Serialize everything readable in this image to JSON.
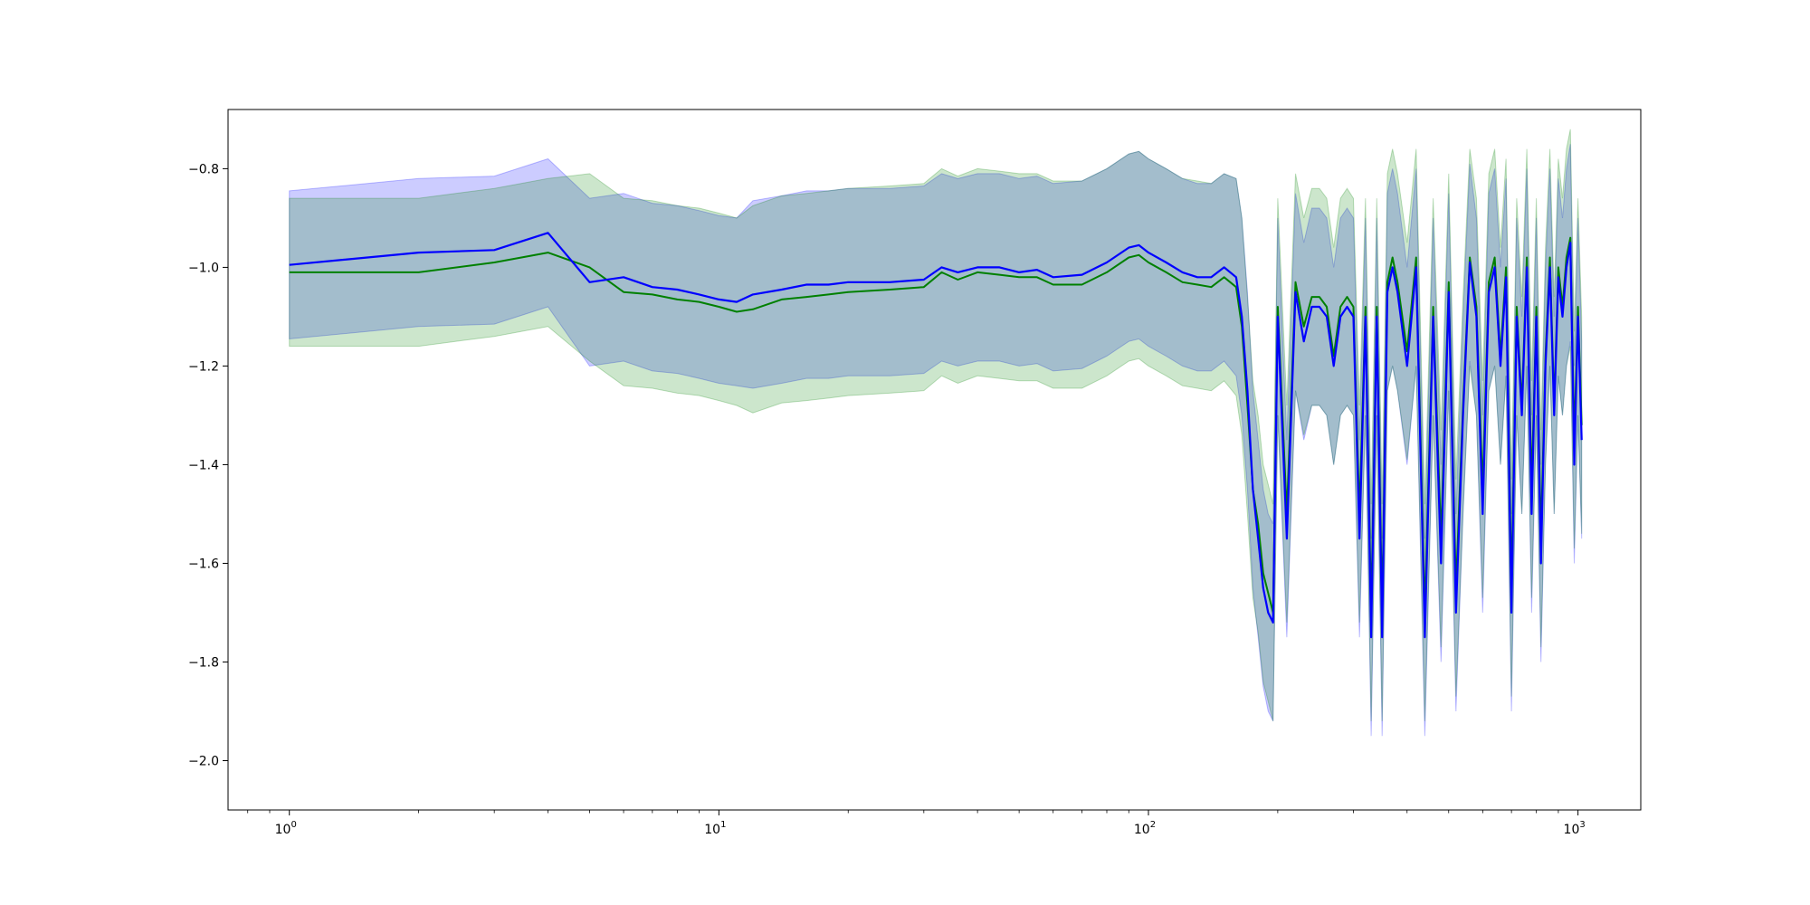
{
  "chart_data": {
    "type": "line",
    "title": "",
    "xlabel": "",
    "ylabel": "",
    "xscale": "log",
    "xlim": [
      0.72,
      1400
    ],
    "ylim": [
      -2.1,
      -0.68
    ],
    "grid": false,
    "legend": "none",
    "x_ticks": [
      {
        "base": "10",
        "exp": "0",
        "value": 1
      },
      {
        "base": "10",
        "exp": "1",
        "value": 10
      },
      {
        "base": "10",
        "exp": "2",
        "value": 100
      },
      {
        "base": "10",
        "exp": "3",
        "value": 1000
      }
    ],
    "y_ticks": [
      {
        "label": "−0.8",
        "value": -0.8
      },
      {
        "label": "−1.0",
        "value": -1.0
      },
      {
        "label": "−1.2",
        "value": -1.2
      },
      {
        "label": "−1.4",
        "value": -1.4
      },
      {
        "label": "−1.6",
        "value": -1.6
      },
      {
        "label": "−1.8",
        "value": -1.8
      },
      {
        "label": "−2.0",
        "value": -2.0
      }
    ],
    "series": [
      {
        "color": "#0000ff",
        "band_color": "#0000ff",
        "band_opacity": 0.2,
        "x": [
          1,
          2,
          3,
          4,
          5,
          6,
          7,
          8,
          9,
          10,
          11,
          12,
          14,
          16,
          18,
          20,
          25,
          30,
          33,
          36,
          40,
          45,
          50,
          55,
          60,
          70,
          80,
          90,
          95,
          100,
          110,
          120,
          130,
          140,
          150,
          160,
          165,
          170,
          175,
          180,
          185,
          190,
          195,
          200,
          210,
          220,
          230,
          240,
          250,
          260,
          270,
          280,
          290,
          300,
          310,
          320,
          330,
          340,
          350,
          360,
          370,
          380,
          400,
          420,
          440,
          460,
          480,
          500,
          520,
          540,
          560,
          580,
          600,
          620,
          640,
          660,
          680,
          700,
          720,
          740,
          760,
          780,
          800,
          820,
          840,
          860,
          880,
          900,
          920,
          940,
          960,
          980,
          1000,
          1020
        ],
        "y": [
          -0.995,
          -0.97,
          -0.965,
          -0.93,
          -1.03,
          -1.02,
          -1.04,
          -1.045,
          -1.055,
          -1.065,
          -1.07,
          -1.055,
          -1.045,
          -1.035,
          -1.035,
          -1.03,
          -1.03,
          -1.025,
          -1.0,
          -1.01,
          -1.0,
          -1.0,
          -1.01,
          -1.005,
          -1.02,
          -1.015,
          -0.99,
          -0.96,
          -0.955,
          -0.97,
          -0.99,
          -1.01,
          -1.02,
          -1.02,
          -1.0,
          -1.02,
          -1.1,
          -1.25,
          -1.45,
          -1.55,
          -1.65,
          -1.7,
          -1.72,
          -1.1,
          -1.55,
          -1.05,
          -1.15,
          -1.08,
          -1.08,
          -1.1,
          -1.2,
          -1.1,
          -1.08,
          -1.1,
          -1.55,
          -1.1,
          -1.75,
          -1.1,
          -1.75,
          -1.05,
          -1.0,
          -1.05,
          -1.2,
          -1.0,
          -1.75,
          -1.1,
          -1.6,
          -1.05,
          -1.7,
          -1.3,
          -0.99,
          -1.1,
          -1.5,
          -1.05,
          -1.0,
          -1.2,
          -1.02,
          -1.7,
          -1.1,
          -1.3,
          -1.0,
          -1.5,
          -1.1,
          -1.6,
          -1.2,
          -1.0,
          -1.3,
          -1.02,
          -1.1,
          -1.0,
          -0.95,
          -1.4,
          -1.1,
          -1.35
        ]
      },
      {
        "color": "#008000",
        "band_color": "#008000",
        "band_opacity": 0.2,
        "x": [
          1,
          2,
          3,
          4,
          5,
          6,
          7,
          8,
          9,
          10,
          11,
          12,
          14,
          16,
          18,
          20,
          25,
          30,
          33,
          36,
          40,
          45,
          50,
          55,
          60,
          70,
          80,
          90,
          95,
          100,
          110,
          120,
          130,
          140,
          150,
          160,
          165,
          170,
          175,
          180,
          185,
          190,
          195,
          200,
          210,
          220,
          230,
          240,
          250,
          260,
          270,
          280,
          290,
          300,
          310,
          320,
          330,
          340,
          350,
          360,
          370,
          380,
          400,
          420,
          440,
          460,
          480,
          500,
          520,
          540,
          560,
          580,
          600,
          620,
          640,
          660,
          680,
          700,
          720,
          740,
          760,
          780,
          800,
          820,
          840,
          860,
          880,
          900,
          920,
          940,
          960,
          980,
          1000,
          1020
        ],
        "y": [
          -1.01,
          -1.01,
          -0.99,
          -0.97,
          -1.0,
          -1.05,
          -1.055,
          -1.065,
          -1.07,
          -1.08,
          -1.09,
          -1.085,
          -1.065,
          -1.06,
          -1.055,
          -1.05,
          -1.045,
          -1.04,
          -1.01,
          -1.025,
          -1.01,
          -1.015,
          -1.02,
          -1.02,
          -1.035,
          -1.035,
          -1.01,
          -0.98,
          -0.975,
          -0.99,
          -1.01,
          -1.03,
          -1.035,
          -1.04,
          -1.02,
          -1.04,
          -1.12,
          -1.28,
          -1.45,
          -1.52,
          -1.62,
          -1.66,
          -1.7,
          -1.08,
          -1.5,
          -1.03,
          -1.12,
          -1.06,
          -1.06,
          -1.08,
          -1.18,
          -1.08,
          -1.06,
          -1.08,
          -1.5,
          -1.08,
          -1.7,
          -1.08,
          -1.7,
          -1.03,
          -0.98,
          -1.03,
          -1.17,
          -0.98,
          -1.7,
          -1.08,
          -1.55,
          -1.03,
          -1.65,
          -1.28,
          -0.98,
          -1.08,
          -1.45,
          -1.03,
          -0.98,
          -1.18,
          -1.0,
          -1.65,
          -1.08,
          -1.28,
          -0.98,
          -1.45,
          -1.08,
          -1.55,
          -1.18,
          -0.98,
          -1.28,
          -1.0,
          -1.08,
          -0.98,
          -0.94,
          -1.35,
          -1.08,
          -1.32
        ]
      }
    ]
  }
}
